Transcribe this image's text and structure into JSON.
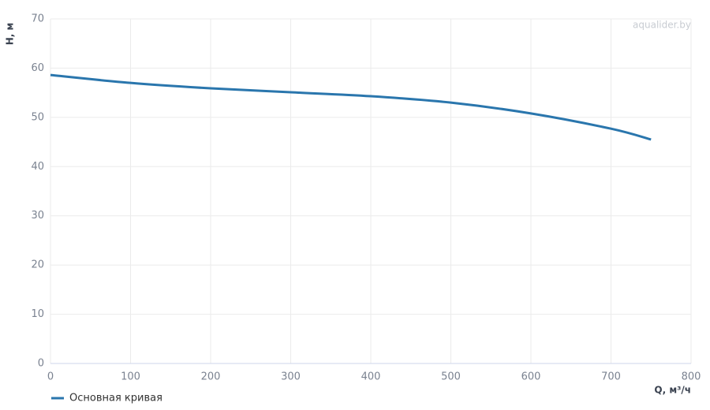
{
  "chart_data": {
    "type": "line",
    "x_label": "Q, м³/ч",
    "y_label": "H, м",
    "watermark": "aqualider.by",
    "x": [
      0,
      100,
      200,
      300,
      400,
      500,
      600,
      700,
      750
    ],
    "series": [
      {
        "name": "Основная кривая",
        "color": "#2a76ad",
        "values": [
          58.6,
          57.0,
          55.9,
          55.1,
          54.3,
          53.0,
          50.8,
          47.7,
          45.5
        ]
      }
    ],
    "xlim": [
      0,
      800
    ],
    "xticks": [
      0,
      100,
      200,
      300,
      400,
      500,
      600,
      700,
      800
    ],
    "ylim": [
      0,
      70
    ],
    "yticks": [
      0,
      10,
      20,
      30,
      40,
      50,
      60,
      70
    ],
    "grid": true,
    "legend": "bottom-left"
  }
}
